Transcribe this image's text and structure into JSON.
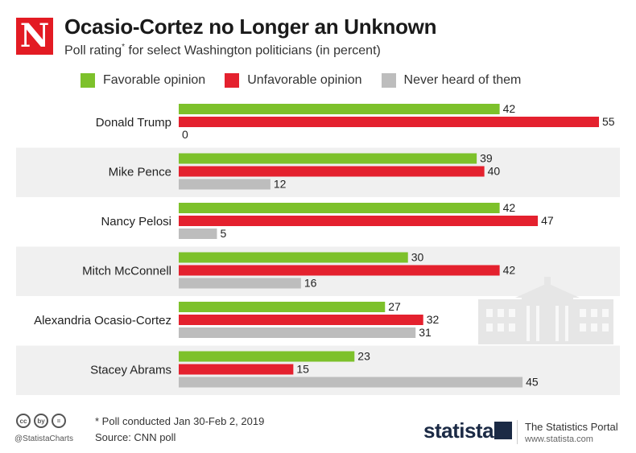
{
  "header": {
    "logo_letter": "N",
    "title": "Ocasio-Cortez no Longer an Unknown",
    "subtitle_pre": "Poll rating",
    "subtitle_mark": "*",
    "subtitle_post": " for select Washington politicians (in percent)"
  },
  "footer": {
    "cc_icons": [
      "cc",
      "by",
      "="
    ],
    "handle": "@StatistaCharts",
    "note": "* Poll conducted Jan 30-Feb 2, 2019",
    "source": "Source: CNN poll",
    "brand": "statista",
    "portal": "The Statistics Portal",
    "portal_url": "www.statista.com"
  },
  "colors": {
    "favorable": "#7dc12b",
    "unfavorable": "#e4212e",
    "never": "#bdbdbd",
    "band": "#f0f0f0"
  },
  "chart_data": {
    "type": "bar",
    "orientation": "horizontal",
    "title": "Ocasio-Cortez no Longer an Unknown",
    "subtitle": "Poll rating* for select Washington politicians (in percent)",
    "categories": [
      "Donald Trump",
      "Mike Pence",
      "Nancy Pelosi",
      "Mitch McConnell",
      "Alexandria Ocasio-Cortez",
      "Stacey Abrams"
    ],
    "series": [
      {
        "name": "Favorable opinion",
        "values": [
          42,
          39,
          42,
          30,
          27,
          23
        ]
      },
      {
        "name": "Unfavorable opinion",
        "values": [
          55,
          40,
          47,
          42,
          32,
          15
        ]
      },
      {
        "name": "Never heard of them",
        "values": [
          0,
          12,
          5,
          16,
          31,
          45
        ]
      }
    ],
    "xlim": [
      0,
      55
    ],
    "legend": "top",
    "grid": false,
    "data_labels": true
  }
}
